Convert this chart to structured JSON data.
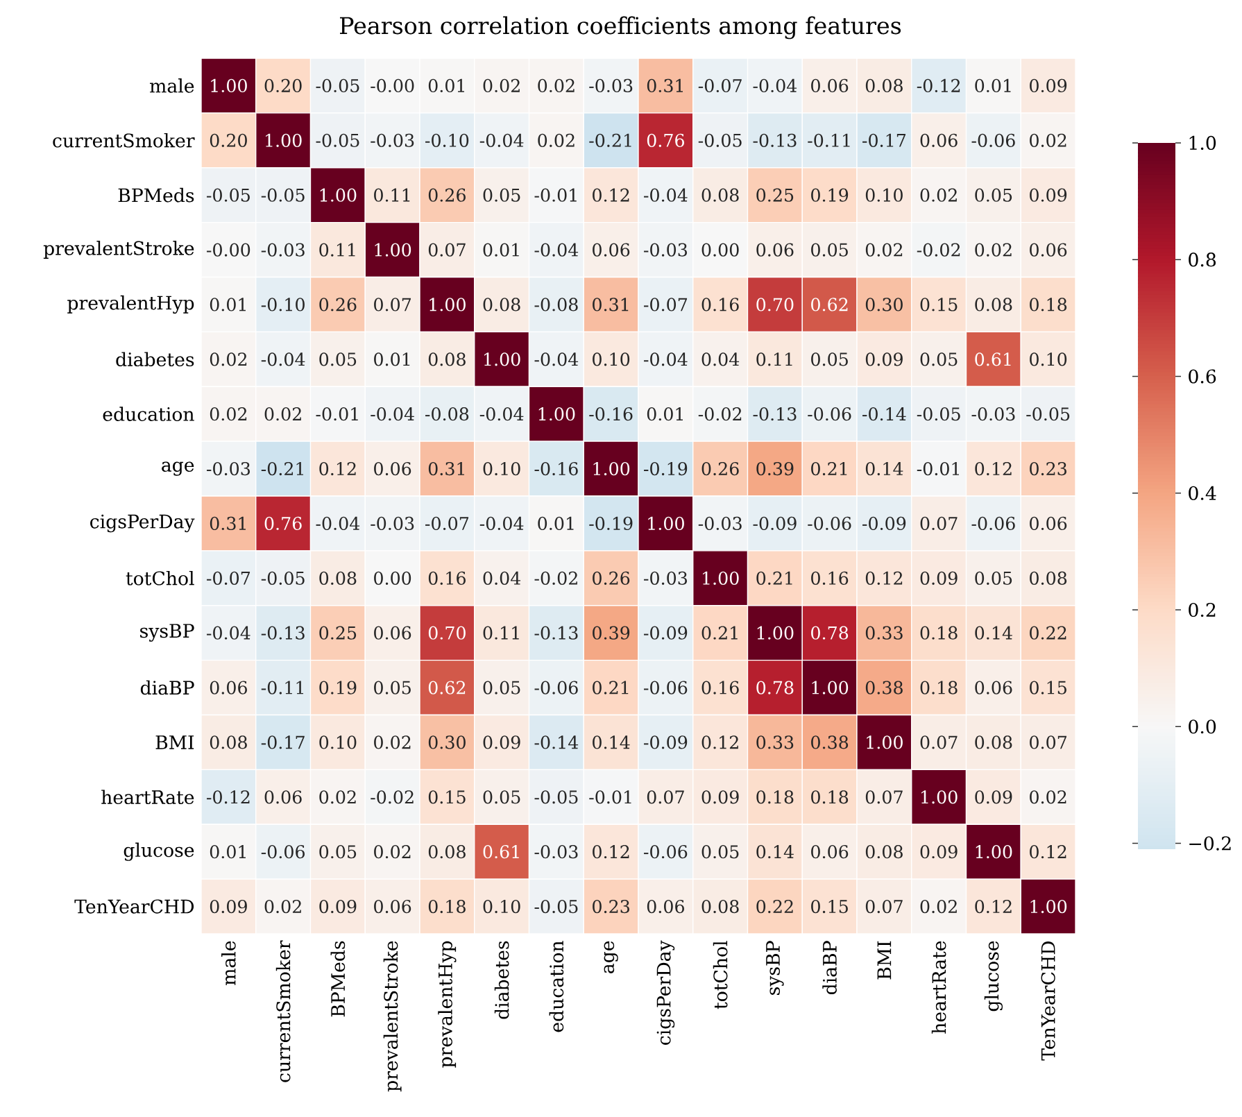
{
  "chart_data": {
    "type": "heatmap",
    "title": "Pearson correlation coefficients among features",
    "categories": [
      "male",
      "currentSmoker",
      "BPMeds",
      "prevalentStroke",
      "prevalentHyp",
      "diabetes",
      "education",
      "age",
      "cigsPerDay",
      "totChol",
      "sysBP",
      "diaBP",
      "BMI",
      "heartRate",
      "glucose",
      "TenYearCHD"
    ],
    "y_categories": [
      "male",
      "currentSmoker",
      "BPMeds",
      "prevalentStroke",
      "prevalentHyp",
      "diabetes",
      "education",
      "age",
      "cigsPerDay",
      "totChol",
      "sysBP",
      "diaBP",
      "BMI",
      "heartRate",
      "glucose",
      "TenYearCHD"
    ],
    "cells": [
      [
        1.0,
        0.2,
        -0.05,
        0.0,
        0.01,
        0.02,
        0.02,
        -0.03,
        0.31,
        -0.07,
        -0.04,
        0.06,
        0.08,
        -0.12,
        0.01,
        0.09
      ],
      [
        0.2,
        1.0,
        -0.05,
        -0.03,
        -0.1,
        -0.04,
        0.02,
        -0.21,
        0.76,
        -0.05,
        -0.13,
        -0.11,
        -0.17,
        0.06,
        -0.06,
        0.02
      ],
      [
        -0.05,
        -0.05,
        1.0,
        0.11,
        0.26,
        0.05,
        -0.01,
        0.12,
        -0.04,
        0.08,
        0.25,
        0.19,
        0.1,
        0.02,
        0.05,
        0.09
      ],
      [
        0.0,
        -0.03,
        0.11,
        1.0,
        0.07,
        0.01,
        -0.04,
        0.06,
        -0.03,
        0.0,
        0.06,
        0.05,
        0.02,
        -0.02,
        0.02,
        0.06
      ],
      [
        0.01,
        -0.1,
        0.26,
        0.07,
        1.0,
        0.08,
        -0.08,
        0.31,
        -0.07,
        0.16,
        0.7,
        0.62,
        0.3,
        0.15,
        0.08,
        0.18
      ],
      [
        0.02,
        -0.04,
        0.05,
        0.01,
        0.08,
        1.0,
        -0.04,
        0.1,
        -0.04,
        0.04,
        0.11,
        0.05,
        0.09,
        0.05,
        0.61,
        0.1
      ],
      [
        0.02,
        0.02,
        -0.01,
        -0.04,
        -0.08,
        -0.04,
        1.0,
        -0.16,
        0.01,
        -0.02,
        -0.13,
        -0.06,
        -0.14,
        -0.05,
        -0.03,
        -0.05
      ],
      [
        -0.03,
        -0.21,
        0.12,
        0.06,
        0.31,
        0.1,
        -0.16,
        1.0,
        -0.19,
        0.26,
        0.39,
        0.21,
        0.14,
        -0.01,
        0.12,
        0.23
      ],
      [
        0.31,
        0.76,
        -0.04,
        -0.03,
        -0.07,
        -0.04,
        0.01,
        -0.19,
        1.0,
        -0.03,
        -0.09,
        -0.06,
        -0.09,
        0.07,
        -0.06,
        0.06
      ],
      [
        -0.07,
        -0.05,
        0.08,
        0.0,
        0.16,
        0.04,
        -0.02,
        0.26,
        -0.03,
        1.0,
        0.21,
        0.16,
        0.12,
        0.09,
        0.05,
        0.08
      ],
      [
        -0.04,
        -0.13,
        0.25,
        0.06,
        0.7,
        0.11,
        -0.13,
        0.39,
        -0.09,
        0.21,
        1.0,
        0.78,
        0.33,
        0.18,
        0.14,
        0.22
      ],
      [
        0.06,
        -0.11,
        0.19,
        0.05,
        0.62,
        0.05,
        -0.06,
        0.21,
        -0.06,
        0.16,
        0.78,
        1.0,
        0.38,
        0.18,
        0.06,
        0.15
      ],
      [
        0.08,
        -0.17,
        0.1,
        0.02,
        0.3,
        0.09,
        -0.14,
        0.14,
        -0.09,
        0.12,
        0.33,
        0.38,
        1.0,
        0.07,
        0.08,
        0.07
      ],
      [
        -0.12,
        0.06,
        0.02,
        -0.02,
        0.15,
        0.05,
        -0.05,
        -0.01,
        0.07,
        0.09,
        0.18,
        0.18,
        0.07,
        1.0,
        0.09,
        0.02
      ],
      [
        0.01,
        -0.06,
        0.05,
        0.02,
        0.08,
        0.61,
        -0.03,
        0.12,
        -0.06,
        0.05,
        0.14,
        0.06,
        0.08,
        0.09,
        1.0,
        0.12
      ],
      [
        0.09,
        0.02,
        0.09,
        0.06,
        0.18,
        0.1,
        -0.05,
        0.23,
        0.06,
        0.08,
        0.22,
        0.15,
        0.07,
        0.02,
        0.12,
        1.0
      ]
    ],
    "cell_labels": [
      [
        "1.00",
        "0.20",
        "-0.05",
        "-0.00",
        "0.01",
        "0.02",
        "0.02",
        "-0.03",
        "0.31",
        "-0.07",
        "-0.04",
        "0.06",
        "0.08",
        "-0.12",
        "0.01",
        "0.09"
      ],
      [
        "0.20",
        "1.00",
        "-0.05",
        "-0.03",
        "-0.10",
        "-0.04",
        "0.02",
        "-0.21",
        "0.76",
        "-0.05",
        "-0.13",
        "-0.11",
        "-0.17",
        "0.06",
        "-0.06",
        "0.02"
      ],
      [
        "-0.05",
        "-0.05",
        "1.00",
        "0.11",
        "0.26",
        "0.05",
        "-0.01",
        "0.12",
        "-0.04",
        "0.08",
        "0.25",
        "0.19",
        "0.10",
        "0.02",
        "0.05",
        "0.09"
      ],
      [
        "-0.00",
        "-0.03",
        "0.11",
        "1.00",
        "0.07",
        "0.01",
        "-0.04",
        "0.06",
        "-0.03",
        "0.00",
        "0.06",
        "0.05",
        "0.02",
        "-0.02",
        "0.02",
        "0.06"
      ],
      [
        "0.01",
        "-0.10",
        "0.26",
        "0.07",
        "1.00",
        "0.08",
        "-0.08",
        "0.31",
        "-0.07",
        "0.16",
        "0.70",
        "0.62",
        "0.30",
        "0.15",
        "0.08",
        "0.18"
      ],
      [
        "0.02",
        "-0.04",
        "0.05",
        "0.01",
        "0.08",
        "1.00",
        "-0.04",
        "0.10",
        "-0.04",
        "0.04",
        "0.11",
        "0.05",
        "0.09",
        "0.05",
        "0.61",
        "0.10"
      ],
      [
        "0.02",
        "0.02",
        "-0.01",
        "-0.04",
        "-0.08",
        "-0.04",
        "1.00",
        "-0.16",
        "0.01",
        "-0.02",
        "-0.13",
        "-0.06",
        "-0.14",
        "-0.05",
        "-0.03",
        "-0.05"
      ],
      [
        "-0.03",
        "-0.21",
        "0.12",
        "0.06",
        "0.31",
        "0.10",
        "-0.16",
        "1.00",
        "-0.19",
        "0.26",
        "0.39",
        "0.21",
        "0.14",
        "-0.01",
        "0.12",
        "0.23"
      ],
      [
        "0.31",
        "0.76",
        "-0.04",
        "-0.03",
        "-0.07",
        "-0.04",
        "0.01",
        "-0.19",
        "1.00",
        "-0.03",
        "-0.09",
        "-0.06",
        "-0.09",
        "0.07",
        "-0.06",
        "0.06"
      ],
      [
        "-0.07",
        "-0.05",
        "0.08",
        "0.00",
        "0.16",
        "0.04",
        "-0.02",
        "0.26",
        "-0.03",
        "1.00",
        "0.21",
        "0.16",
        "0.12",
        "0.09",
        "0.05",
        "0.08"
      ],
      [
        "-0.04",
        "-0.13",
        "0.25",
        "0.06",
        "0.70",
        "0.11",
        "-0.13",
        "0.39",
        "-0.09",
        "0.21",
        "1.00",
        "0.78",
        "0.33",
        "0.18",
        "0.14",
        "0.22"
      ],
      [
        "0.06",
        "-0.11",
        "0.19",
        "0.05",
        "0.62",
        "0.05",
        "-0.06",
        "0.21",
        "-0.06",
        "0.16",
        "0.78",
        "1.00",
        "0.38",
        "0.18",
        "0.06",
        "0.15"
      ],
      [
        "0.08",
        "-0.17",
        "0.10",
        "0.02",
        "0.30",
        "0.09",
        "-0.14",
        "0.14",
        "-0.09",
        "0.12",
        "0.33",
        "0.38",
        "1.00",
        "0.07",
        "0.08",
        "0.07"
      ],
      [
        "-0.12",
        "0.06",
        "0.02",
        "-0.02",
        "0.15",
        "0.05",
        "-0.05",
        "-0.01",
        "0.07",
        "0.09",
        "0.18",
        "0.18",
        "0.07",
        "1.00",
        "0.09",
        "0.02"
      ],
      [
        "0.01",
        "-0.06",
        "0.05",
        "0.02",
        "0.08",
        "0.61",
        "-0.03",
        "0.12",
        "-0.06",
        "0.05",
        "0.14",
        "0.06",
        "0.08",
        "0.09",
        "1.00",
        "0.12"
      ],
      [
        "0.09",
        "0.02",
        "0.09",
        "0.06",
        "0.18",
        "0.10",
        "-0.05",
        "0.23",
        "0.06",
        "0.08",
        "0.22",
        "0.15",
        "0.07",
        "0.02",
        "0.12",
        "1.00"
      ]
    ],
    "clim": [
      -0.21,
      1.0
    ],
    "cticks": [
      {
        "value": -0.2,
        "label": "−0.2"
      },
      {
        "value": 0.0,
        "label": "0.0"
      },
      {
        "value": 0.2,
        "label": "0.2"
      },
      {
        "value": 0.4,
        "label": "0.4"
      },
      {
        "value": 0.6,
        "label": "0.6"
      },
      {
        "value": 0.8,
        "label": "0.8"
      },
      {
        "value": 1.0,
        "label": "1.0"
      }
    ]
  }
}
